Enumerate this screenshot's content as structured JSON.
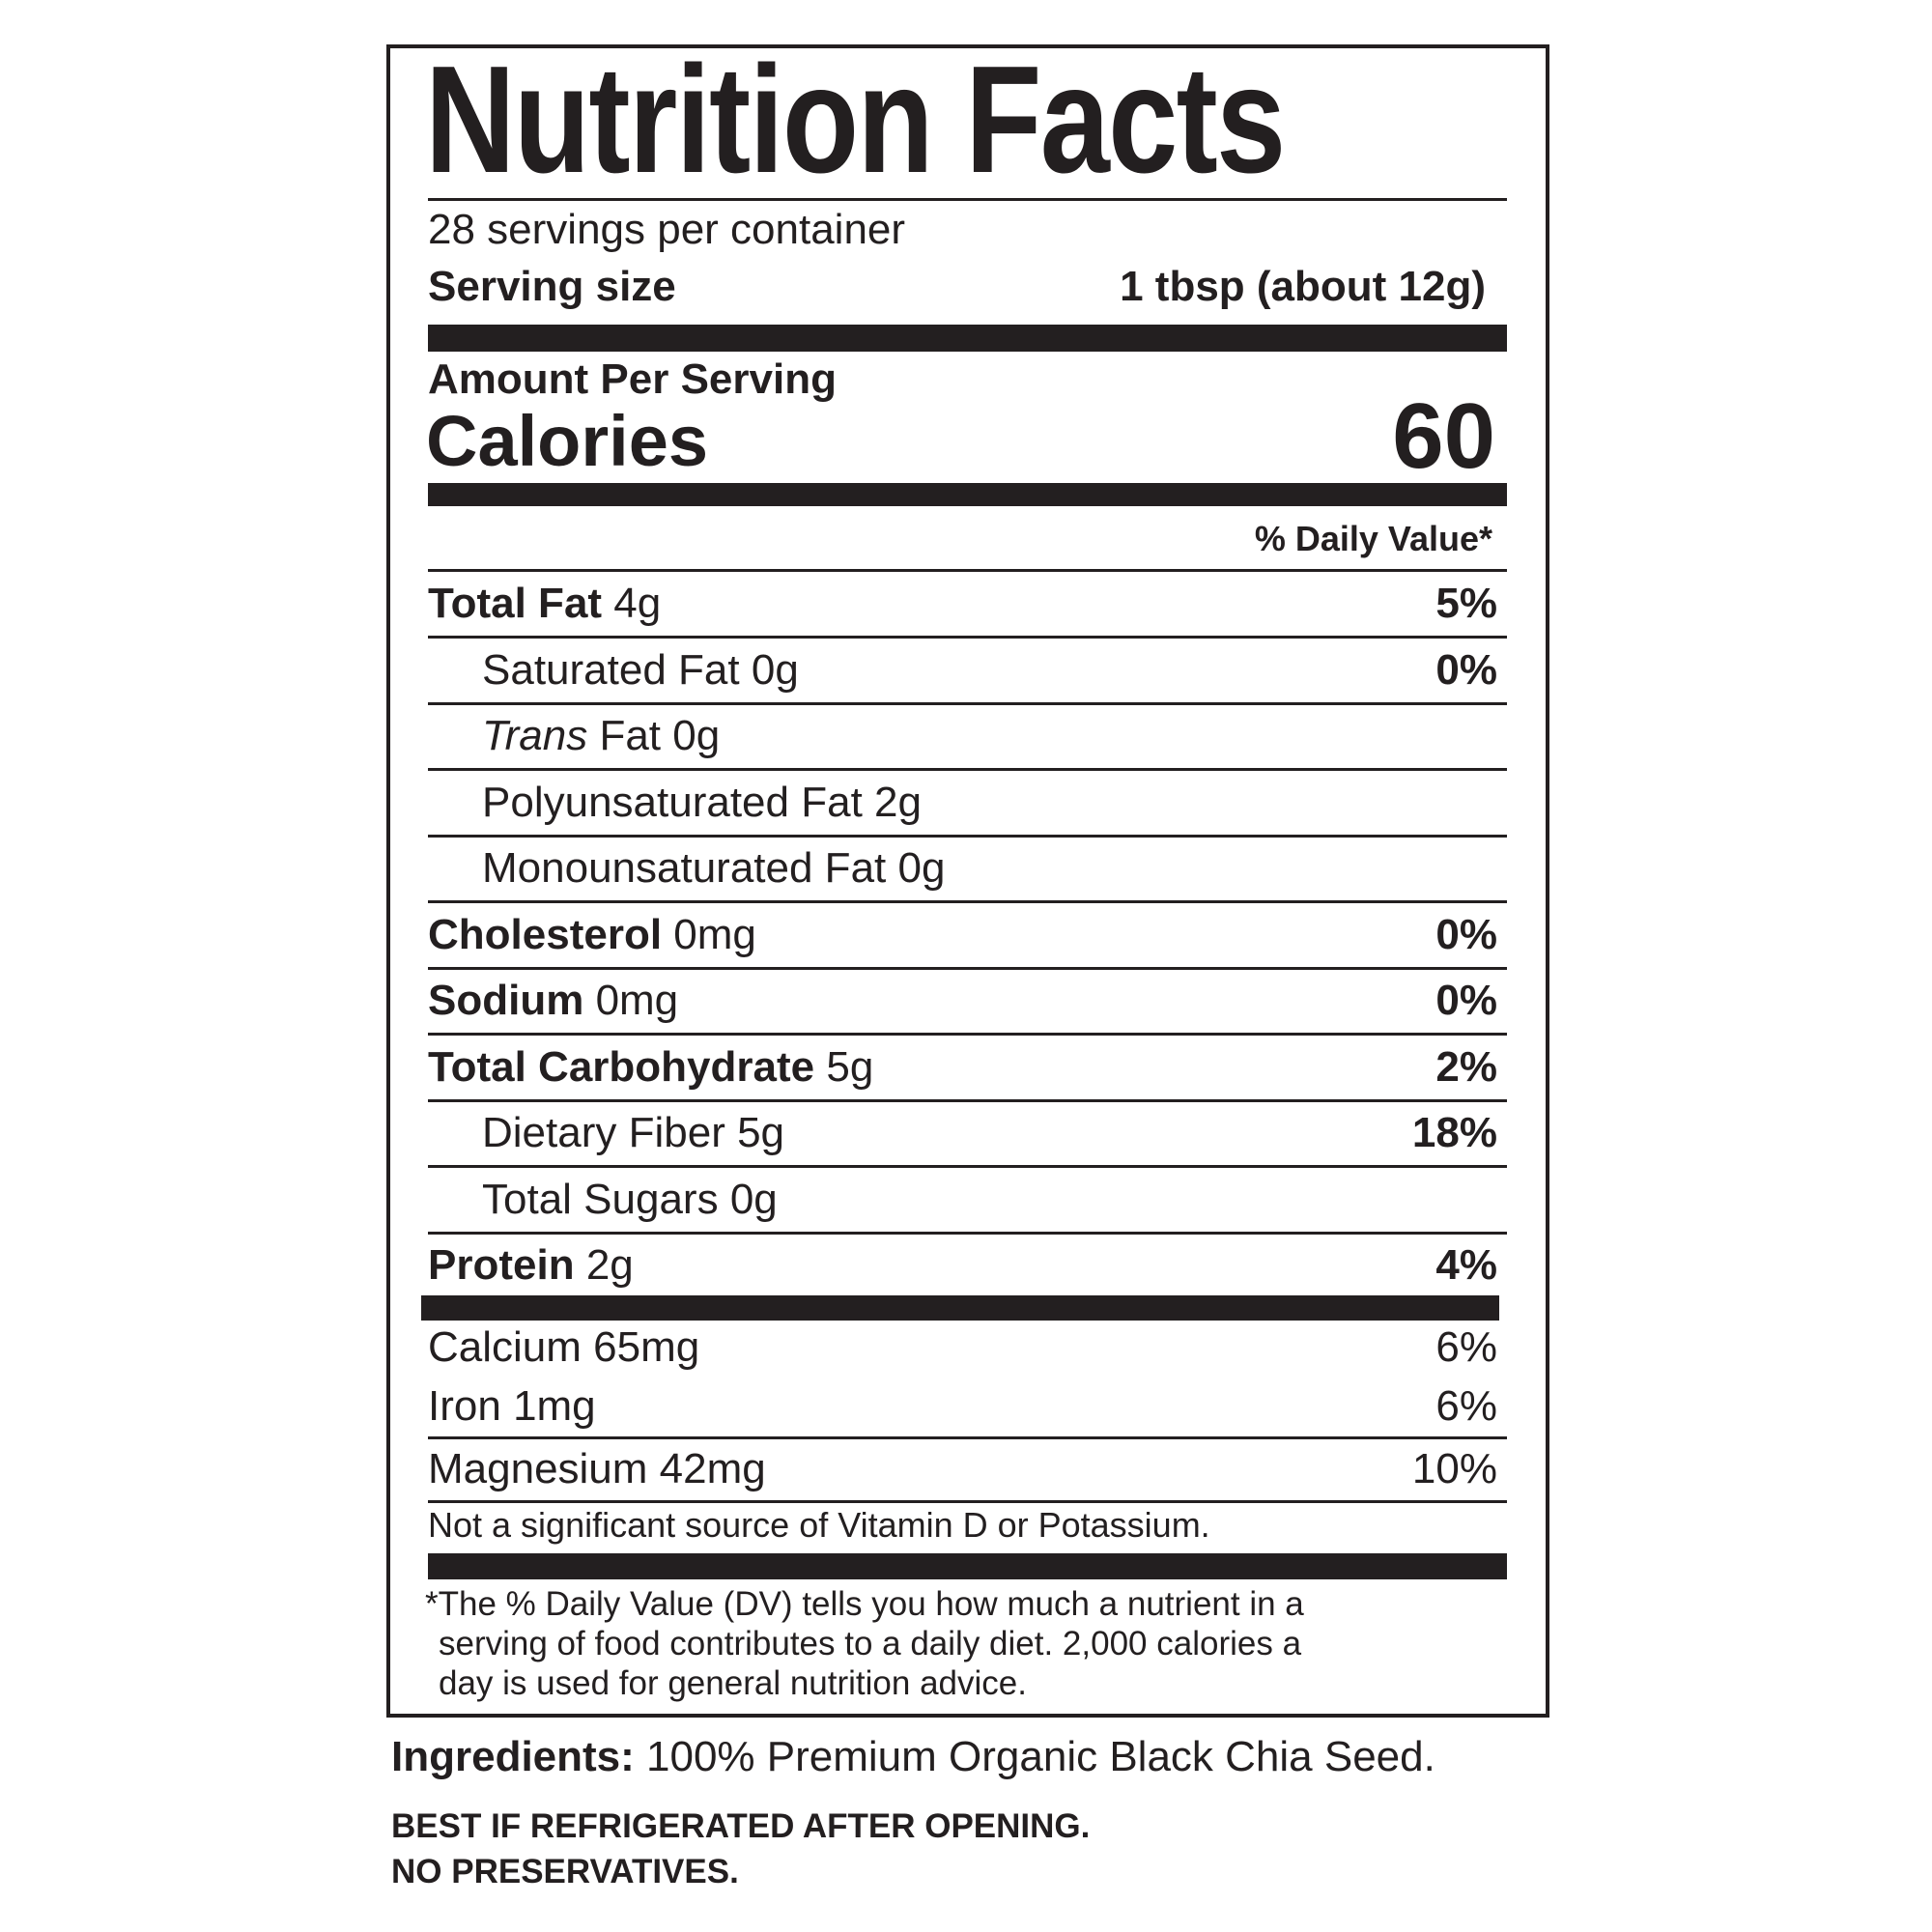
{
  "label": {
    "title": "Nutrition Facts",
    "servings_per_container": "28 servings per container",
    "serving_size_label": "Serving size",
    "serving_size_value": "1 tbsp (about 12g)",
    "amount_per_serving": "Amount Per Serving",
    "calories_label": "Calories",
    "calories_value": "60",
    "daily_value_header": "% Daily Value*",
    "nutrients": [
      {
        "name": "Total Fat",
        "amount": "4g",
        "dv": "5%",
        "bold": true,
        "indent": false
      },
      {
        "name": "Saturated Fat",
        "amount": "0g",
        "dv": "0%",
        "bold": false,
        "indent": true
      },
      {
        "name": "Trans",
        "name_suffix": " Fat",
        "amount": "0g",
        "dv": "",
        "bold": false,
        "indent": true,
        "italic": true
      },
      {
        "name": "Polyunsaturated Fat",
        "amount": "2g",
        "dv": "",
        "bold": false,
        "indent": true
      },
      {
        "name": "Monounsaturated Fat",
        "amount": "0g",
        "dv": "",
        "bold": false,
        "indent": true
      },
      {
        "name": "Cholesterol",
        "amount": "0mg",
        "dv": "0%",
        "bold": true,
        "indent": false
      },
      {
        "name": "Sodium",
        "amount": "0mg",
        "dv": "0%",
        "bold": true,
        "indent": false
      },
      {
        "name": "Total Carbohydrate",
        "amount": "5g",
        "dv": "2%",
        "bold": true,
        "indent": false
      },
      {
        "name": "Dietary Fiber",
        "amount": "5g",
        "dv": "18%",
        "bold": false,
        "indent": true
      },
      {
        "name": "Total Sugars",
        "amount": "0g",
        "dv": "",
        "bold": false,
        "indent": true
      },
      {
        "name": "Protein",
        "amount": "2g",
        "dv": "4%",
        "bold": true,
        "indent": false
      }
    ],
    "minerals": [
      {
        "name": "Calcium",
        "amount": "65mg",
        "dv": "6%"
      },
      {
        "name": "Iron",
        "amount": "1mg",
        "dv": "6%"
      },
      {
        "name": "Magnesium",
        "amount": "42mg",
        "dv": "10%"
      }
    ],
    "not_significant": "Not a significant source of Vitamin D or Potassium.",
    "footnote": [
      "*The % Daily Value (DV) tells you how much a nutrient in a",
      "serving of food contributes to a daily diet. 2,000 calories a",
      "day is used for general nutrition advice."
    ]
  },
  "ingredients": {
    "label": "Ingredients:",
    "text": " 100% Premium Organic Black Chia Seed."
  },
  "notices": [
    "BEST IF REFRIGERATED AFTER OPENING.",
    "NO PRESERVATIVES."
  ],
  "colors": {
    "ink": "#231f20",
    "background": "#ffffff"
  }
}
